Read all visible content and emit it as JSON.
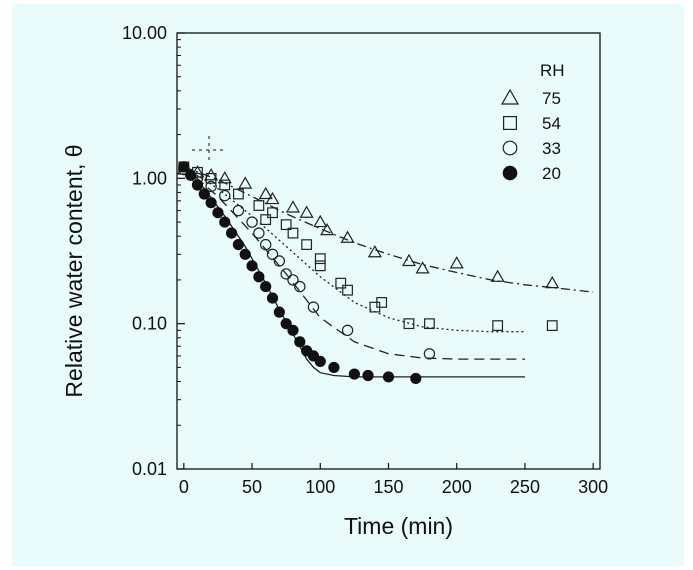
{
  "chart_data": {
    "type": "scatter",
    "xlabel": "Time (min)",
    "ylabel": "Relative water content, θ",
    "xlim": [
      -5,
      305
    ],
    "ylim": [
      0.01,
      10
    ],
    "yscale": "log",
    "xticks": [
      "0",
      "50",
      "100",
      "150",
      "200",
      "250",
      "300"
    ],
    "yticks": [
      "0.01",
      "0.10",
      "1.00",
      "10.00"
    ],
    "legend_title": "RH",
    "legend_position": "top-right",
    "grid": false,
    "series": [
      {
        "name": "75",
        "marker": "triangle-open",
        "x": [
          0,
          10,
          20,
          30,
          45,
          60,
          65,
          80,
          90,
          100,
          105,
          120,
          140,
          165,
          175,
          200,
          230,
          270
        ],
        "y": [
          1.15,
          1.1,
          1.05,
          1.0,
          0.92,
          0.78,
          0.72,
          0.63,
          0.58,
          0.5,
          0.44,
          0.39,
          0.31,
          0.27,
          0.24,
          0.26,
          0.21,
          0.19
        ],
        "fit_x": [
          0,
          25,
          50,
          75,
          100,
          125,
          150,
          175,
          200,
          225,
          250,
          275,
          300
        ],
        "fit_y": [
          1.2,
          0.98,
          0.75,
          0.57,
          0.45,
          0.36,
          0.3,
          0.255,
          0.225,
          0.2,
          0.185,
          0.175,
          0.165
        ],
        "fit_style": "dash-dot"
      },
      {
        "name": "54",
        "marker": "square-open",
        "x": [
          0,
          10,
          20,
          30,
          40,
          55,
          60,
          65,
          75,
          80,
          90,
          100,
          100,
          115,
          120,
          140,
          145,
          165,
          180,
          230,
          270
        ],
        "y": [
          1.2,
          1.1,
          1.0,
          0.9,
          0.78,
          0.65,
          0.52,
          0.58,
          0.48,
          0.42,
          0.35,
          0.28,
          0.25,
          0.19,
          0.17,
          0.13,
          0.14,
          0.1,
          0.1,
          0.097,
          0.097
        ],
        "fit_x": [
          0,
          25,
          50,
          75,
          100,
          125,
          150,
          175,
          200,
          225,
          250
        ],
        "fit_y": [
          1.2,
          0.85,
          0.55,
          0.34,
          0.21,
          0.14,
          0.11,
          0.095,
          0.09,
          0.088,
          0.088
        ],
        "fit_style": "dotted"
      },
      {
        "name": "33",
        "marker": "circle-open",
        "x": [
          0,
          10,
          20,
          30,
          40,
          50,
          55,
          60,
          65,
          70,
          75,
          80,
          85,
          95,
          120,
          180
        ],
        "y": [
          1.15,
          1.0,
          0.88,
          0.76,
          0.6,
          0.5,
          0.42,
          0.35,
          0.3,
          0.27,
          0.22,
          0.2,
          0.18,
          0.13,
          0.09,
          0.062
        ],
        "fit_x": [
          0,
          25,
          50,
          75,
          100,
          125,
          150,
          175,
          200,
          225,
          250
        ],
        "fit_y": [
          1.2,
          0.75,
          0.42,
          0.22,
          0.11,
          0.075,
          0.062,
          0.058,
          0.057,
          0.057,
          0.057
        ],
        "fit_style": "dashed"
      },
      {
        "name": "20",
        "marker": "circle-filled",
        "x": [
          0,
          5,
          10,
          15,
          20,
          25,
          30,
          35,
          40,
          45,
          50,
          55,
          60,
          65,
          70,
          75,
          80,
          85,
          90,
          95,
          100,
          110,
          125,
          135,
          150,
          170
        ],
        "y": [
          1.2,
          1.05,
          0.9,
          0.78,
          0.68,
          0.58,
          0.5,
          0.42,
          0.35,
          0.3,
          0.25,
          0.21,
          0.18,
          0.15,
          0.12,
          0.1,
          0.09,
          0.075,
          0.065,
          0.06,
          0.055,
          0.05,
          0.045,
          0.044,
          0.043,
          0.042
        ],
        "fit_x": [
          0,
          15,
          30,
          45,
          60,
          70,
          80,
          85,
          90,
          95,
          100,
          110,
          125,
          150,
          200,
          250
        ],
        "fit_y": [
          1.2,
          0.85,
          0.55,
          0.34,
          0.19,
          0.125,
          0.085,
          0.07,
          0.057,
          0.05,
          0.046,
          0.044,
          0.043,
          0.043,
          0.043,
          0.043
        ],
        "fit_style": "solid"
      }
    ]
  }
}
